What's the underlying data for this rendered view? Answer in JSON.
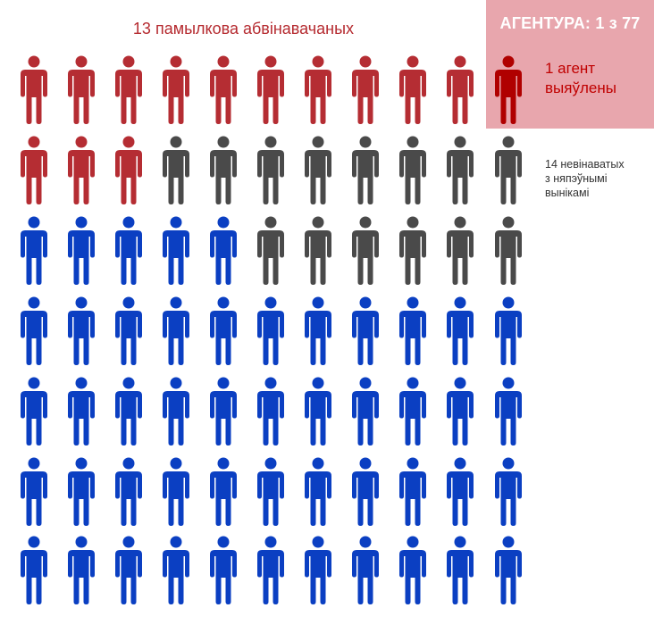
{
  "header": {
    "false_accused": "13 памылкова абвінавачаных",
    "agency": "АГЕНТУРА: 1 з 77"
  },
  "labels": {
    "agent_line1": "1 агент",
    "agent_line2": "выяўлены",
    "innocent_line1": "14 невінаватых",
    "innocent_line2": "з няпэўнымі",
    "innocent_line3": "вынікамі"
  },
  "colors": {
    "false": "#b52d33",
    "agent": "#b00000",
    "uncertain": "#4a4a4a",
    "innocent": "#0b3fc2",
    "agency_box": "#e8a6ad"
  },
  "grid": {
    "rows": [
      [
        "false",
        "false",
        "false",
        "false",
        "false",
        "false",
        "false",
        "false",
        "false",
        "false",
        "agent"
      ],
      [
        "false",
        "false",
        "false",
        "uncertain",
        "uncertain",
        "uncertain",
        "uncertain",
        "uncertain",
        "uncertain",
        "uncertain",
        "uncertain"
      ],
      [
        "innocent",
        "innocent",
        "innocent",
        "innocent",
        "innocent",
        "uncertain",
        "uncertain",
        "uncertain",
        "uncertain",
        "uncertain",
        "uncertain"
      ],
      [
        "innocent",
        "innocent",
        "innocent",
        "innocent",
        "innocent",
        "innocent",
        "innocent",
        "innocent",
        "innocent",
        "innocent",
        "innocent"
      ],
      [
        "innocent",
        "innocent",
        "innocent",
        "innocent",
        "innocent",
        "innocent",
        "innocent",
        "innocent",
        "innocent",
        "innocent",
        "innocent"
      ],
      [
        "innocent",
        "innocent",
        "innocent",
        "innocent",
        "innocent",
        "innocent",
        "innocent",
        "innocent",
        "innocent",
        "innocent",
        "innocent"
      ],
      [
        "innocent",
        "innocent",
        "innocent",
        "innocent",
        "innocent",
        "innocent",
        "innocent",
        "innocent",
        "innocent",
        "innocent",
        "innocent"
      ]
    ]
  }
}
